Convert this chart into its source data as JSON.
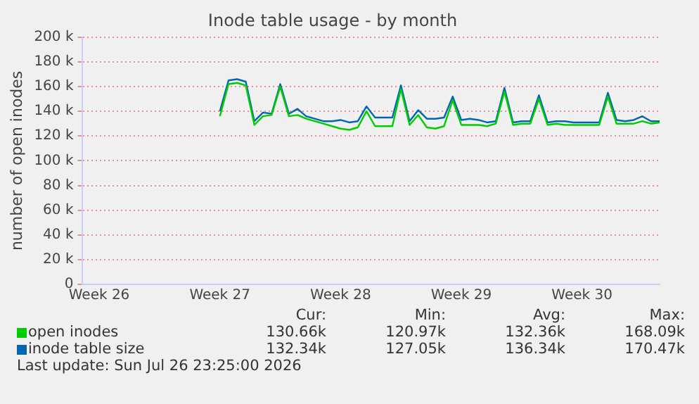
{
  "chart_data": {
    "type": "line",
    "title": "Inode table usage - by month",
    "ylabel": "number of open inodes",
    "categories": [
      null,
      null,
      "Week 26",
      null,
      null,
      null,
      null,
      null,
      null,
      null,
      null,
      null,
      null,
      null,
      null,
      null,
      "Week 27",
      null,
      null,
      null,
      null,
      null,
      null,
      null,
      null,
      null,
      null,
      null,
      null,
      null,
      "Week 28",
      null,
      null,
      null,
      null,
      null,
      null,
      null,
      null,
      null,
      null,
      null,
      null,
      null,
      "Week 29",
      null,
      null,
      null,
      null,
      null,
      null,
      null,
      null,
      null,
      null,
      null,
      null,
      null,
      "Week 30",
      null,
      null,
      null,
      null,
      null,
      null,
      null,
      null,
      null
    ],
    "series": [
      {
        "name": "open inodes",
        "color": "#00cc00",
        "values": [
          null,
          null,
          null,
          null,
          null,
          null,
          null,
          null,
          null,
          null,
          null,
          null,
          null,
          null,
          null,
          null,
          136000,
          162000,
          163000,
          161000,
          129000,
          136000,
          137000,
          160000,
          136000,
          137000,
          134000,
          132000,
          130000,
          128000,
          126000,
          125000,
          127000,
          140000,
          128000,
          128000,
          128000,
          158000,
          129000,
          137000,
          127000,
          126000,
          128000,
          149000,
          129000,
          129000,
          129000,
          128000,
          130000,
          156000,
          129000,
          130000,
          130000,
          150000,
          129000,
          130000,
          129000,
          129000,
          129000,
          129000,
          129000,
          152000,
          130000,
          130000,
          130000,
          132000,
          130000,
          131000
        ]
      },
      {
        "name": "inode table size",
        "color": "#0066b3",
        "values": [
          null,
          null,
          null,
          null,
          null,
          null,
          null,
          null,
          null,
          null,
          null,
          null,
          null,
          null,
          null,
          null,
          140000,
          165000,
          166000,
          164000,
          132000,
          139000,
          138000,
          162000,
          138000,
          142000,
          136000,
          134000,
          132000,
          132000,
          133000,
          131000,
          132000,
          144000,
          135000,
          135000,
          135000,
          161000,
          132000,
          141000,
          134000,
          134000,
          135000,
          152000,
          133000,
          134000,
          133000,
          131000,
          132000,
          159000,
          131000,
          132000,
          132000,
          153000,
          131000,
          132000,
          132000,
          131000,
          131000,
          131000,
          131000,
          155000,
          133000,
          132000,
          133000,
          136000,
          132000,
          132000
        ]
      }
    ],
    "ylim": [
      0,
      200000
    ],
    "yticks": [
      {
        "value": 0,
        "label": "0"
      },
      {
        "value": 20000,
        "label": "20 k"
      },
      {
        "value": 40000,
        "label": "40 k"
      },
      {
        "value": 60000,
        "label": "60 k"
      },
      {
        "value": 80000,
        "label": "80 k"
      },
      {
        "value": 100000,
        "label": "100 k"
      },
      {
        "value": 120000,
        "label": "120 k"
      },
      {
        "value": 140000,
        "label": "140 k"
      },
      {
        "value": 160000,
        "label": "160 k"
      },
      {
        "value": 180000,
        "label": "180 k"
      },
      {
        "value": 200000,
        "label": "200 k"
      }
    ],
    "grid": "y",
    "legend": "bottom left",
    "marker": "none",
    "line_style": "solid",
    "annotations": [
      "Cur:",
      "Min:",
      "Avg:",
      "Max:",
      "130.66k",
      "120.97k",
      "132.36k",
      "168.09k",
      "132.34k",
      "127.05k",
      "136.34k",
      "170.47k",
      "Last update: Sun Jul 26 23:25:00 2026"
    ]
  }
}
